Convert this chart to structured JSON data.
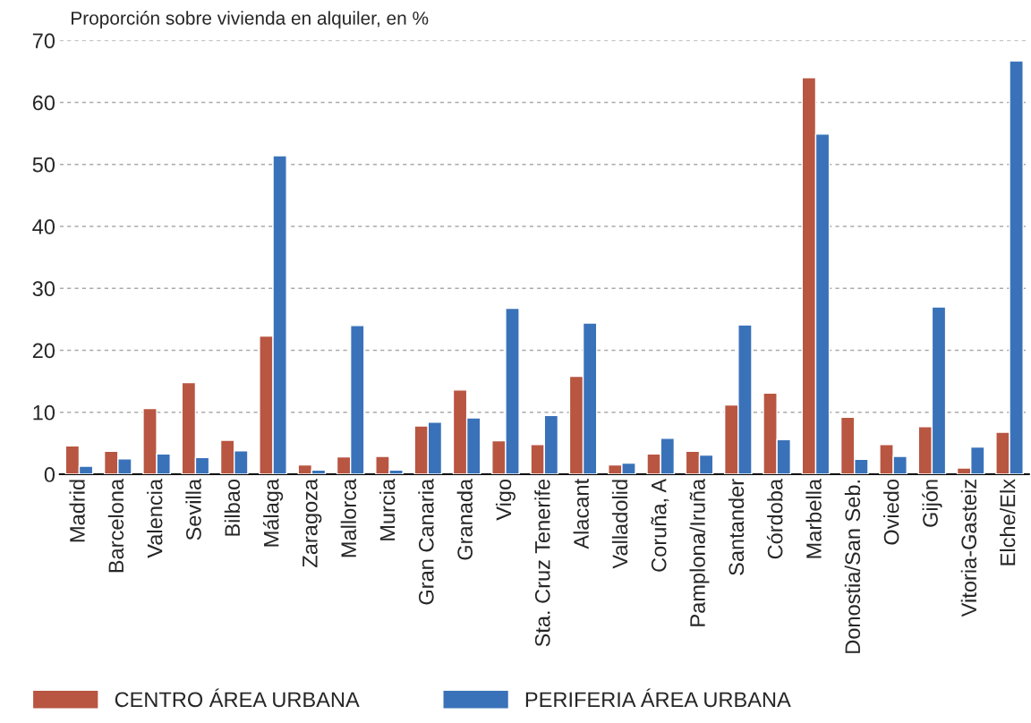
{
  "chart_data": {
    "type": "bar",
    "ylabel": "Proporción sobre vivienda en alquiler, en %",
    "categories": [
      "Madrid",
      "Barcelona",
      "Valencia",
      "Sevilla",
      "Bilbao",
      "Málaga",
      "Zaragoza",
      "Mallorca",
      "Murcia",
      "Gran Canaria",
      "Granada",
      "Vigo",
      "Sta. Cruz Tenerife",
      "Alacant",
      "Valladolid",
      "Coruña, A",
      "Pamplona/Iruña",
      "Santander",
      "Córdoba",
      "Marbella",
      "Donostia/San Seb.",
      "Oviedo",
      "Gijón",
      "Vitoria-Gasteiz",
      "Elche/Elx"
    ],
    "series": [
      {
        "name": "CENTRO ÁREA URBANA",
        "color": "#b85642",
        "values": [
          4.6,
          3.7,
          10.6,
          14.8,
          5.5,
          22.3,
          1.5,
          2.8,
          2.9,
          7.8,
          13.6,
          5.4,
          4.8,
          15.8,
          1.5,
          3.3,
          3.7,
          11.2,
          13.1,
          64.0,
          9.2,
          4.8,
          7.7,
          1.0,
          6.8
        ]
      },
      {
        "name": "PERIFERIA ÁREA URBANA",
        "color": "#3a72b9",
        "values": [
          1.3,
          2.5,
          3.3,
          2.7,
          3.8,
          51.4,
          0.7,
          24.0,
          0.7,
          8.4,
          9.1,
          26.8,
          9.5,
          24.4,
          1.8,
          5.8,
          3.1,
          24.1,
          5.6,
          54.9,
          2.4,
          2.9,
          27.0,
          4.4,
          66.7
        ]
      }
    ],
    "ylim": [
      0,
      70
    ],
    "yticks": [
      0,
      10,
      20,
      30,
      40,
      50,
      60,
      70
    ],
    "grid": "y",
    "legend": "bottom"
  }
}
